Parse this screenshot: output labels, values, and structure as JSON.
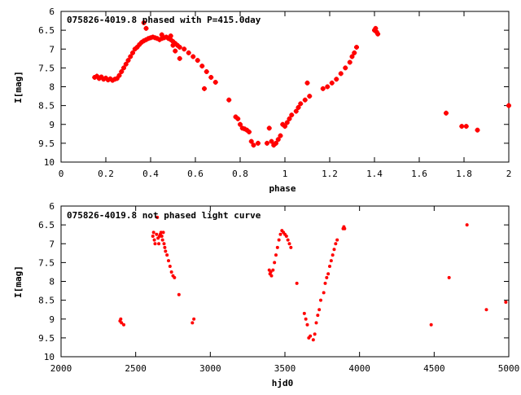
{
  "chart_data": [
    {
      "type": "scatter",
      "title": "075826-4019.8 phased with P=415.0day",
      "xlabel": "phase",
      "ylabel": "I[mag]",
      "xlim": [
        0,
        2
      ],
      "ylim": [
        10,
        6
      ],
      "y_inverted": true,
      "xticks": [
        0,
        0.2,
        0.4,
        0.6,
        0.8,
        1,
        1.2,
        1.4,
        1.6,
        1.8,
        2
      ],
      "xtick_labels": [
        "0",
        "0.2",
        "0.4",
        "0.6",
        "0.8",
        "1",
        "1.2",
        "1.4",
        "1.6",
        "1.8",
        "2"
      ],
      "yticks": [
        6,
        6.5,
        7,
        7.5,
        8,
        8.5,
        9,
        9.5,
        10
      ],
      "ytick_labels": [
        "6",
        "6.5",
        "7",
        "7.5",
        "8",
        "8.5",
        "9",
        "9.5",
        "10"
      ],
      "grid": false,
      "marker_color": "#ff0000",
      "series": [
        {
          "points": [
            [
              0.15,
              7.75
            ],
            [
              0.16,
              7.72
            ],
            [
              0.17,
              7.78
            ],
            [
              0.18,
              7.74
            ],
            [
              0.19,
              7.8
            ],
            [
              0.2,
              7.77
            ],
            [
              0.21,
              7.82
            ],
            [
              0.22,
              7.79
            ],
            [
              0.23,
              7.83
            ],
            [
              0.24,
              7.8
            ],
            [
              0.25,
              7.78
            ],
            [
              0.26,
              7.7
            ],
            [
              0.27,
              7.6
            ],
            [
              0.28,
              7.5
            ],
            [
              0.29,
              7.4
            ],
            [
              0.3,
              7.3
            ],
            [
              0.31,
              7.2
            ],
            [
              0.32,
              7.1
            ],
            [
              0.33,
              7.0
            ],
            [
              0.34,
              6.95
            ],
            [
              0.35,
              6.88
            ],
            [
              0.36,
              6.82
            ],
            [
              0.37,
              6.78
            ],
            [
              0.38,
              6.75
            ],
            [
              0.39,
              6.72
            ],
            [
              0.4,
              6.7
            ],
            [
              0.41,
              6.68
            ],
            [
              0.42,
              6.7
            ],
            [
              0.43,
              6.72
            ],
            [
              0.44,
              6.75
            ],
            [
              0.45,
              6.72
            ],
            [
              0.46,
              6.7
            ],
            [
              0.47,
              6.68
            ],
            [
              0.48,
              6.72
            ],
            [
              0.49,
              6.75
            ],
            [
              0.5,
              6.8
            ],
            [
              0.51,
              6.85
            ],
            [
              0.52,
              6.9
            ],
            [
              0.53,
              6.95
            ],
            [
              0.55,
              7.0
            ],
            [
              0.57,
              7.1
            ],
            [
              0.59,
              7.2
            ],
            [
              0.61,
              7.3
            ],
            [
              0.63,
              7.45
            ],
            [
              0.65,
              7.6
            ],
            [
              0.67,
              7.75
            ],
            [
              0.69,
              7.88
            ],
            [
              0.37,
              6.3
            ],
            [
              0.38,
              6.45
            ],
            [
              0.45,
              6.62
            ],
            [
              0.49,
              6.65
            ],
            [
              0.5,
              6.9
            ],
            [
              0.51,
              7.05
            ],
            [
              0.53,
              7.25
            ],
            [
              0.64,
              8.05
            ],
            [
              0.75,
              8.35
            ],
            [
              0.78,
              8.8
            ],
            [
              0.79,
              8.85
            ],
            [
              0.8,
              9.0
            ],
            [
              0.81,
              9.1
            ],
            [
              0.82,
              9.12
            ],
            [
              0.83,
              9.15
            ],
            [
              0.84,
              9.2
            ],
            [
              0.85,
              9.45
            ],
            [
              0.86,
              9.55
            ],
            [
              0.88,
              9.5
            ],
            [
              0.92,
              9.5
            ],
            [
              0.93,
              9.1
            ],
            [
              0.94,
              9.45
            ],
            [
              0.95,
              9.55
            ],
            [
              0.96,
              9.5
            ],
            [
              0.97,
              9.4
            ],
            [
              0.98,
              9.3
            ],
            [
              0.99,
              9.0
            ],
            [
              1.0,
              9.05
            ],
            [
              1.01,
              8.95
            ],
            [
              1.02,
              8.85
            ],
            [
              1.03,
              8.75
            ],
            [
              1.05,
              8.65
            ],
            [
              1.06,
              8.55
            ],
            [
              1.07,
              8.45
            ],
            [
              1.09,
              8.35
            ],
            [
              1.1,
              7.9
            ],
            [
              1.11,
              8.25
            ],
            [
              1.17,
              8.05
            ],
            [
              1.19,
              8.0
            ],
            [
              1.21,
              7.9
            ],
            [
              1.23,
              7.8
            ],
            [
              1.25,
              7.65
            ],
            [
              1.27,
              7.5
            ],
            [
              1.29,
              7.35
            ],
            [
              1.3,
              7.2
            ],
            [
              1.31,
              7.1
            ],
            [
              1.32,
              6.95
            ],
            [
              1.4,
              6.5
            ],
            [
              1.405,
              6.45
            ],
            [
              1.41,
              6.55
            ],
            [
              1.415,
              6.6
            ],
            [
              1.72,
              8.7
            ],
            [
              1.79,
              9.05
            ],
            [
              1.81,
              9.05
            ],
            [
              1.86,
              9.15
            ],
            [
              2.0,
              8.5
            ]
          ]
        }
      ]
    },
    {
      "type": "scatter",
      "title": "075826-4019.8 not phased light curve",
      "xlabel": "hjd0",
      "ylabel": "I[mag]",
      "xlim": [
        2000,
        5000
      ],
      "ylim": [
        10,
        6
      ],
      "y_inverted": true,
      "xticks": [
        2000,
        2500,
        3000,
        3500,
        4000,
        4500,
        5000
      ],
      "xtick_labels": [
        "2000",
        "2500",
        "3000",
        "3500",
        "4000",
        "4500",
        "5000"
      ],
      "yticks": [
        6,
        6.5,
        7,
        7.5,
        8,
        8.5,
        9,
        9.5,
        10
      ],
      "ytick_labels": [
        "6",
        "6.5",
        "7",
        "7.5",
        "8",
        "8.5",
        "9",
        "9.5",
        "10"
      ],
      "grid": false,
      "marker_color": "#ff0000",
      "series": [
        {
          "points": [
            [
              2395,
              9.05
            ],
            [
              2400,
              9.0
            ],
            [
              2405,
              9.1
            ],
            [
              2420,
              9.15
            ],
            [
              2615,
              6.8
            ],
            [
              2620,
              6.7
            ],
            [
              2625,
              6.9
            ],
            [
              2630,
              7.0
            ],
            [
              2640,
              6.75
            ],
            [
              2645,
              6.3
            ],
            [
              2650,
              6.85
            ],
            [
              2655,
              7.0
            ],
            [
              2660,
              6.8
            ],
            [
              2665,
              6.75
            ],
            [
              2670,
              6.7
            ],
            [
              2675,
              6.8
            ],
            [
              2680,
              6.9
            ],
            [
              2685,
              6.7
            ],
            [
              2690,
              7.0
            ],
            [
              2695,
              7.1
            ],
            [
              2700,
              7.2
            ],
            [
              2710,
              7.3
            ],
            [
              2720,
              7.45
            ],
            [
              2730,
              7.6
            ],
            [
              2740,
              7.75
            ],
            [
              2750,
              7.85
            ],
            [
              2760,
              7.9
            ],
            [
              2790,
              8.35
            ],
            [
              2880,
              9.1
            ],
            [
              2890,
              9.0
            ],
            [
              3395,
              7.7
            ],
            [
              3400,
              7.8
            ],
            [
              3405,
              7.75
            ],
            [
              3410,
              7.85
            ],
            [
              3420,
              7.7
            ],
            [
              3430,
              7.5
            ],
            [
              3440,
              7.3
            ],
            [
              3450,
              7.1
            ],
            [
              3460,
              6.9
            ],
            [
              3470,
              6.75
            ],
            [
              3480,
              6.65
            ],
            [
              3490,
              6.7
            ],
            [
              3500,
              6.75
            ],
            [
              3510,
              6.8
            ],
            [
              3520,
              6.9
            ],
            [
              3530,
              7.0
            ],
            [
              3540,
              7.1
            ],
            [
              3580,
              8.05
            ],
            [
              3630,
              8.85
            ],
            [
              3640,
              9.0
            ],
            [
              3650,
              9.15
            ],
            [
              3660,
              9.5
            ],
            [
              3670,
              9.45
            ],
            [
              3690,
              9.55
            ],
            [
              3700,
              9.4
            ],
            [
              3710,
              9.1
            ],
            [
              3720,
              8.9
            ],
            [
              3730,
              8.75
            ],
            [
              3740,
              8.5
            ],
            [
              3760,
              8.3
            ],
            [
              3770,
              8.05
            ],
            [
              3780,
              7.9
            ],
            [
              3790,
              7.8
            ],
            [
              3800,
              7.6
            ],
            [
              3810,
              7.45
            ],
            [
              3820,
              7.3
            ],
            [
              3830,
              7.15
            ],
            [
              3840,
              7.0
            ],
            [
              3850,
              6.9
            ],
            [
              3890,
              6.6
            ],
            [
              3895,
              6.55
            ],
            [
              3900,
              6.6
            ],
            [
              4480,
              9.15
            ],
            [
              4600,
              7.9
            ],
            [
              4720,
              6.5
            ],
            [
              4850,
              8.75
            ],
            [
              4980,
              8.55
            ]
          ]
        }
      ]
    }
  ]
}
